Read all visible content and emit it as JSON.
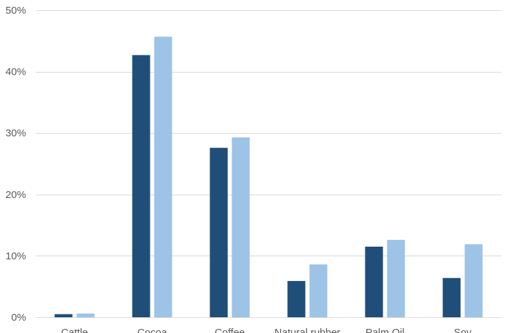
{
  "chart_data": {
    "type": "bar",
    "title": "",
    "xlabel": "",
    "ylabel": "",
    "categories": [
      "Cattle",
      "Cocoa",
      "Coffee",
      "Natural rubber",
      "Palm Oil",
      "Soy"
    ],
    "series": [
      {
        "color": "#1f4e79",
        "values": [
          0.5,
          42.7,
          27.6,
          5.9,
          11.5,
          6.4
        ]
      },
      {
        "color": "#9dc3e6",
        "values": [
          0.6,
          45.7,
          29.3,
          8.6,
          12.6,
          11.9
        ]
      }
    ],
    "ylim": [
      0,
      50
    ],
    "yticks": [
      0,
      10,
      20,
      30,
      40,
      50
    ],
    "ytick_labels": [
      "0%",
      "10%",
      "20%",
      "30%",
      "40%",
      "50%"
    ],
    "grid": true,
    "legend": "none"
  }
}
